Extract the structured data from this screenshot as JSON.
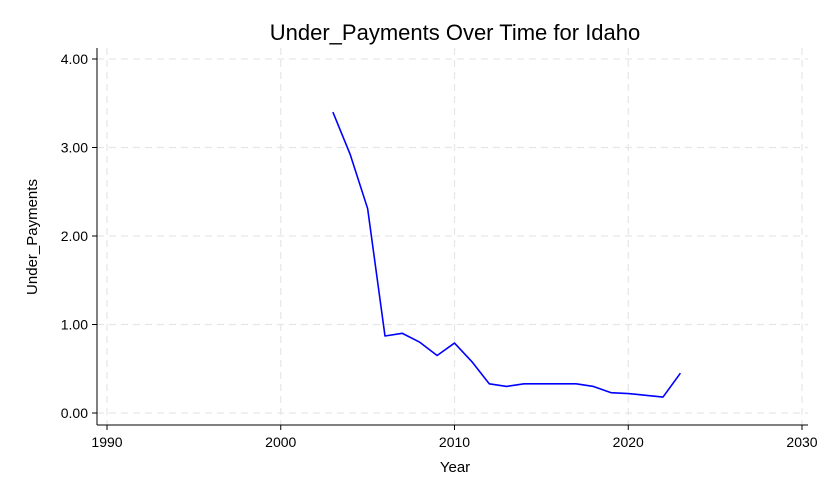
{
  "chart_data": {
    "type": "line",
    "title": "Under_Payments Over Time for Idaho",
    "xlabel": "Year",
    "ylabel": "Under_Payments",
    "xlim": [
      1990,
      2030
    ],
    "ylim": [
      0,
      4
    ],
    "xticks": [
      1990,
      2000,
      2010,
      2020,
      2030
    ],
    "xtick_labels": [
      "1990",
      "2000",
      "2010",
      "2020",
      "2030"
    ],
    "yticks": [
      0,
      1,
      2,
      3,
      4
    ],
    "ytick_labels": [
      "0.00",
      "1.00",
      "2.00",
      "3.00",
      "4.00"
    ],
    "grid": true,
    "color": "#0000ff",
    "x": [
      2003,
      2004,
      2005,
      2006,
      2007,
      2008,
      2009,
      2010,
      2011,
      2012,
      2013,
      2014,
      2015,
      2016,
      2017,
      2018,
      2019,
      2020,
      2021,
      2022,
      2023
    ],
    "series": [
      {
        "values": [
          3.4,
          2.92,
          2.31,
          0.87,
          0.9,
          0.8,
          0.65,
          0.79,
          0.58,
          0.33,
          0.3,
          0.33,
          0.33,
          0.33,
          0.33,
          0.3,
          0.23,
          0.22,
          0.2,
          0.18,
          0.45
        ]
      }
    ]
  }
}
